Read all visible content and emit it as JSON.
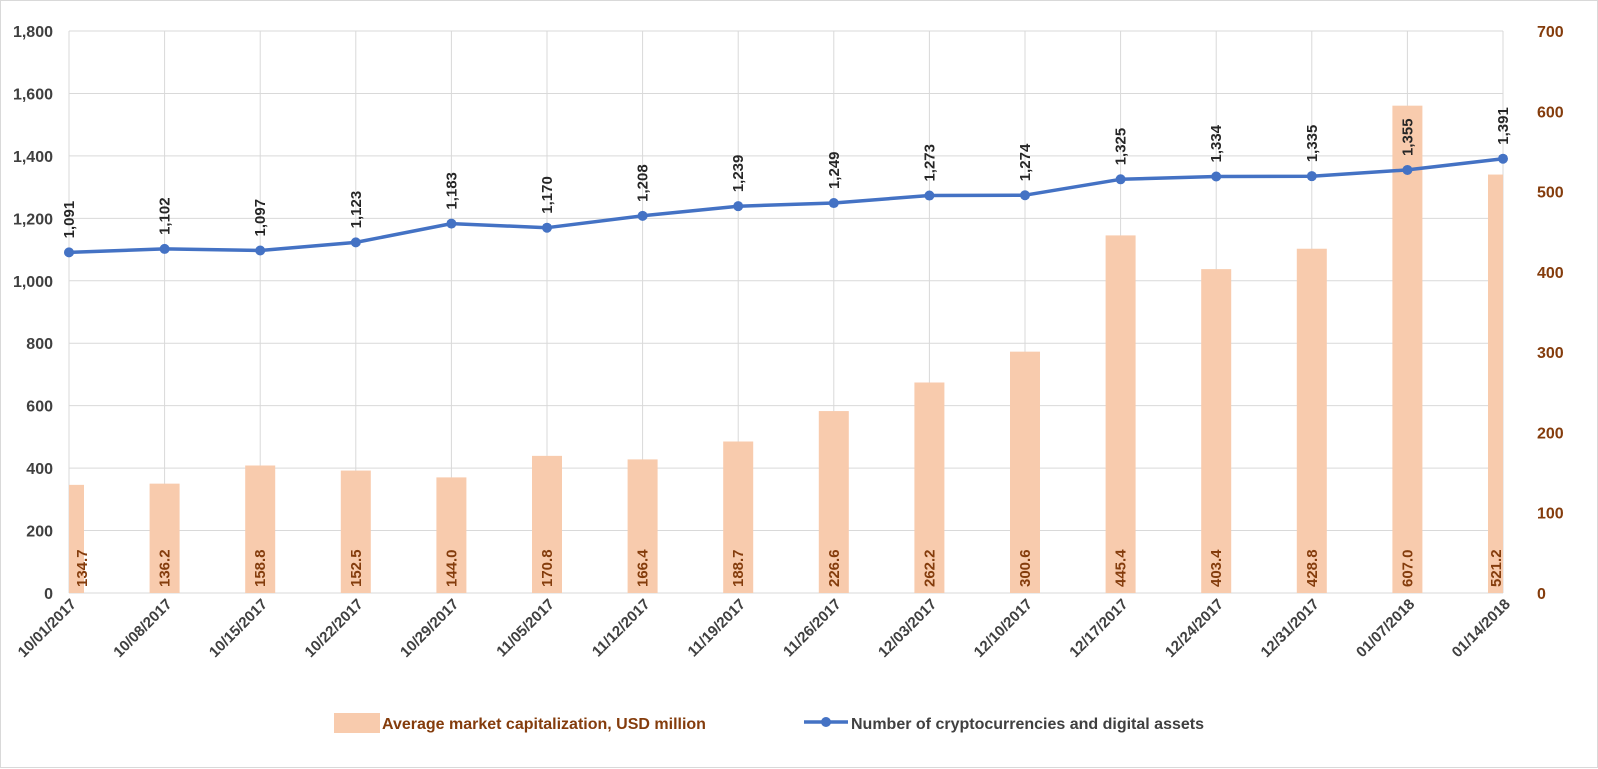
{
  "chart_data": {
    "type": "bar+line",
    "categories": [
      "10/01/2017",
      "10/08/2017",
      "10/15/2017",
      "10/22/2017",
      "10/29/2017",
      "11/05/2017",
      "11/12/2017",
      "11/19/2017",
      "11/26/2017",
      "12/03/2017",
      "12/10/2017",
      "12/17/2017",
      "12/24/2017",
      "12/31/2017",
      "01/07/2018",
      "01/14/2018"
    ],
    "series": [
      {
        "name": "Average market capitalization, USD million",
        "type": "bar",
        "axis": "right",
        "color": "#f8cbad",
        "values": [
          134.7,
          136.2,
          158.8,
          152.5,
          144.0,
          170.8,
          166.4,
          188.7,
          226.6,
          262.2,
          300.6,
          445.4,
          403.4,
          428.8,
          607.0,
          521.2
        ],
        "labels": [
          "134.7",
          "136.2",
          "158.8",
          "152.5",
          "144.0",
          "170.8",
          "166.4",
          "188.7",
          "226.6",
          "262.2",
          "300.6",
          "445.4",
          "403.4",
          "428.8",
          "607.0",
          "521.2"
        ]
      },
      {
        "name": "Number of cryptocurrencies and digital assets",
        "type": "line",
        "axis": "left",
        "color": "#4472c4",
        "values": [
          1091,
          1102,
          1097,
          1123,
          1183,
          1170,
          1208,
          1239,
          1249,
          1273,
          1274,
          1325,
          1334,
          1335,
          1355,
          1391
        ],
        "labels": [
          "1,091",
          "1,102",
          "1,097",
          "1,123",
          "1,183",
          "1,170",
          "1,208",
          "1,239",
          "1,249",
          "1,273",
          "1,274",
          "1,325",
          "1,334",
          "1,335",
          "1,355",
          "1,391"
        ]
      }
    ],
    "y_left": {
      "range": [
        0,
        1800
      ],
      "ticks": [
        0,
        200,
        400,
        600,
        800,
        1000,
        1200,
        1400,
        1600,
        1800
      ],
      "tick_labels": [
        "0",
        "200",
        "400",
        "600",
        "800",
        "1,000",
        "1,200",
        "1,400",
        "1,600",
        "1,800"
      ]
    },
    "y_right": {
      "range": [
        0,
        700
      ],
      "ticks": [
        0,
        100,
        200,
        300,
        400,
        500,
        600,
        700
      ],
      "tick_labels": [
        "0",
        "100",
        "200",
        "300",
        "400",
        "500",
        "600",
        "700"
      ],
      "color": "#843c0c"
    },
    "grid": true,
    "legend_position": "bottom"
  }
}
